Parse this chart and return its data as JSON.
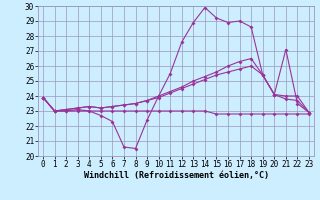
{
  "xlabel": "Windchill (Refroidissement éolien,°C)",
  "line1": [
    23.9,
    23.0,
    23.0,
    23.1,
    23.0,
    22.7,
    22.3,
    20.6,
    20.5,
    22.4,
    24.0,
    25.5,
    27.6,
    28.9,
    29.9,
    29.2,
    28.9,
    29.0,
    28.6,
    25.4,
    24.1,
    27.1,
    23.5,
    22.9
  ],
  "line2": [
    23.9,
    23.0,
    23.1,
    23.2,
    23.3,
    23.2,
    23.3,
    23.4,
    23.5,
    23.7,
    24.0,
    24.3,
    24.6,
    25.0,
    25.3,
    25.6,
    26.0,
    26.3,
    26.5,
    25.4,
    24.1,
    24.0,
    24.0,
    22.9
  ],
  "line3": [
    23.9,
    23.0,
    23.1,
    23.2,
    23.3,
    23.2,
    23.3,
    23.4,
    23.5,
    23.7,
    23.9,
    24.2,
    24.5,
    24.8,
    25.1,
    25.4,
    25.6,
    25.8,
    26.0,
    25.4,
    24.1,
    23.8,
    23.7,
    22.9
  ],
  "line4": [
    23.9,
    23.0,
    23.0,
    23.0,
    23.0,
    23.0,
    23.0,
    23.0,
    23.0,
    23.0,
    23.0,
    23.0,
    23.0,
    23.0,
    23.0,
    22.8,
    22.8,
    22.8,
    22.8,
    22.8,
    22.8,
    22.8,
    22.8,
    22.8
  ],
  "color": "#993399",
  "bg_color": "#cceeff",
  "grid_color": "#9999bb",
  "ylim": [
    20,
    30
  ],
  "xlim": [
    0,
    23
  ],
  "yticks": [
    20,
    21,
    22,
    23,
    24,
    25,
    26,
    27,
    28,
    29,
    30
  ],
  "xticks": [
    0,
    1,
    2,
    3,
    4,
    5,
    6,
    7,
    8,
    9,
    10,
    11,
    12,
    13,
    14,
    15,
    16,
    17,
    18,
    19,
    20,
    21,
    22,
    23
  ],
  "marker": "D",
  "markersize": 2.0,
  "linewidth": 0.8,
  "axis_fontsize": 6,
  "tick_fontsize": 5.5
}
